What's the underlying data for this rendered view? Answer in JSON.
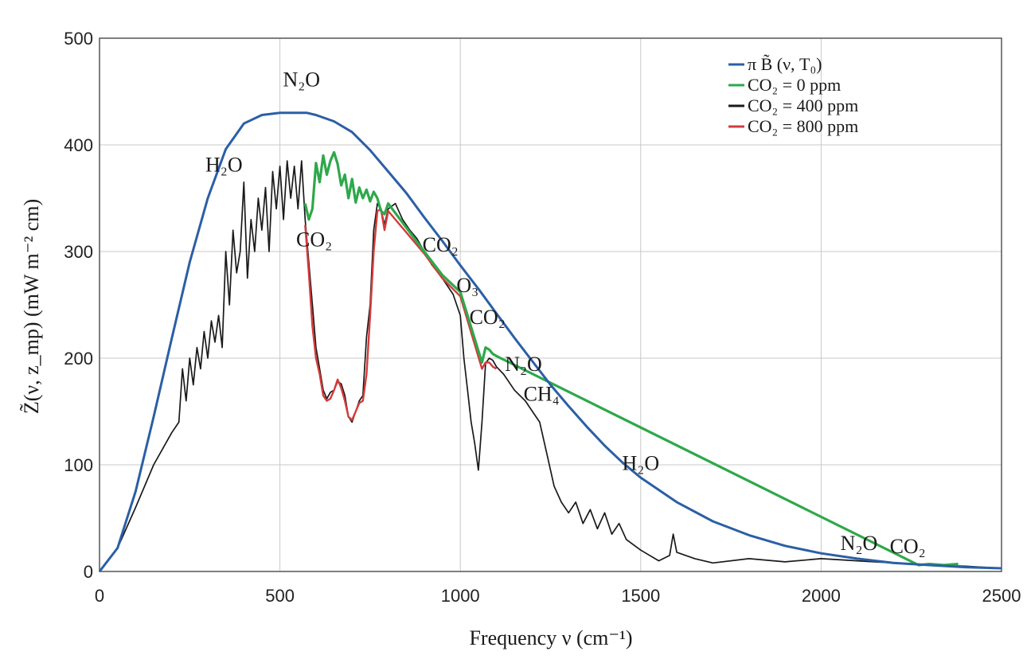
{
  "chart_data": {
    "type": "line",
    "title": "",
    "xlabel": "Frequency ν (cm⁻¹)",
    "ylabel": "Z̃(ν, z_mp) (mW m⁻² cm)",
    "xlim": [
      0,
      2500
    ],
    "ylim": [
      0,
      500
    ],
    "x_ticks": [
      0,
      500,
      1000,
      1500,
      2000,
      2500
    ],
    "y_ticks": [
      0,
      100,
      200,
      300,
      400,
      500
    ],
    "grid": true,
    "legend_position": "top-right",
    "series": [
      {
        "name": "π B̃ (ν, T₀)",
        "color": "#2b5fa6",
        "x": [
          0,
          50,
          100,
          150,
          200,
          250,
          300,
          350,
          400,
          450,
          500,
          550,
          575,
          600,
          650,
          700,
          750,
          800,
          850,
          900,
          950,
          1000,
          1050,
          1100,
          1150,
          1200,
          1250,
          1300,
          1350,
          1400,
          1450,
          1500,
          1600,
          1700,
          1800,
          1900,
          2000,
          2100,
          2200,
          2300,
          2400,
          2500
        ],
        "y": [
          0,
          22,
          75,
          145,
          218,
          290,
          350,
          396,
          420,
          428,
          430,
          430,
          430,
          428,
          422,
          412,
          395,
          375,
          355,
          332,
          310,
          287,
          265,
          242,
          219,
          197,
          175,
          155,
          136,
          118,
          102,
          88,
          65,
          47,
          34,
          24,
          17,
          12,
          8,
          6,
          4,
          3
        ]
      },
      {
        "name": "CO₂ = 0 ppm",
        "color": "#2ea84a",
        "x": [
          570,
          580,
          590,
          600,
          610,
          620,
          630,
          640,
          650,
          660,
          670,
          680,
          690,
          700,
          710,
          720,
          730,
          740,
          750,
          760,
          770,
          780,
          790,
          800,
          900,
          950,
          1000,
          1060,
          1070,
          1080,
          1090,
          1100,
          2270,
          2300,
          2340,
          2380
        ],
        "y": [
          345,
          330,
          340,
          383,
          365,
          390,
          372,
          385,
          393,
          382,
          362,
          372,
          350,
          368,
          346,
          360,
          350,
          358,
          347,
          356,
          350,
          338,
          335,
          345,
          300,
          278,
          262,
          196,
          210,
          208,
          204,
          202,
          6,
          7,
          6,
          7
        ]
      },
      {
        "name": "CO₂ = 400 ppm",
        "color": "#1a1a1a",
        "x": [
          0,
          50,
          100,
          150,
          200,
          220,
          230,
          240,
          250,
          260,
          270,
          280,
          290,
          300,
          310,
          320,
          330,
          340,
          350,
          360,
          370,
          380,
          390,
          400,
          410,
          420,
          430,
          440,
          450,
          460,
          470,
          480,
          490,
          500,
          510,
          520,
          530,
          540,
          550,
          560,
          570,
          580,
          590,
          600,
          610,
          620,
          630,
          640,
          650,
          660,
          670,
          680,
          690,
          700,
          710,
          720,
          730,
          740,
          750,
          760,
          770,
          780,
          790,
          800,
          820,
          840,
          860,
          880,
          900,
          920,
          950,
          980,
          1000,
          1010,
          1020,
          1030,
          1040,
          1050,
          1060,
          1070,
          1080,
          1090,
          1100,
          1120,
          1150,
          1180,
          1200,
          1220,
          1240,
          1260,
          1280,
          1300,
          1320,
          1340,
          1360,
          1380,
          1400,
          1420,
          1440,
          1460,
          1500,
          1550,
          1580,
          1590,
          1600,
          1650,
          1700,
          1800,
          1900,
          2000,
          2100,
          2200,
          2300,
          2400,
          2500
        ],
        "y": [
          0,
          22,
          60,
          100,
          130,
          140,
          190,
          160,
          200,
          175,
          210,
          190,
          225,
          200,
          235,
          215,
          240,
          210,
          300,
          250,
          320,
          280,
          300,
          365,
          275,
          330,
          300,
          350,
          320,
          360,
          300,
          375,
          340,
          380,
          330,
          385,
          350,
          380,
          340,
          385,
          330,
          290,
          250,
          210,
          190,
          170,
          162,
          168,
          170,
          178,
          176,
          165,
          145,
          140,
          150,
          160,
          165,
          220,
          250,
          320,
          345,
          340,
          325,
          340,
          345,
          330,
          320,
          312,
          300,
          288,
          275,
          260,
          240,
          200,
          170,
          140,
          120,
          95,
          140,
          195,
          200,
          198,
          192,
          185,
          170,
          160,
          150,
          140,
          110,
          80,
          65,
          55,
          65,
          45,
          58,
          40,
          55,
          35,
          45,
          30,
          20,
          10,
          15,
          35,
          18,
          12,
          8,
          12,
          9,
          12,
          10,
          8,
          6,
          5,
          3
        ]
      },
      {
        "name": "CO₂ = 800 ppm",
        "color": "#d43b3b",
        "x": [
          570,
          580,
          590,
          600,
          610,
          620,
          630,
          640,
          650,
          660,
          670,
          680,
          690,
          700,
          710,
          720,
          730,
          740,
          750,
          760,
          770,
          780,
          790,
          800,
          900,
          950,
          1000,
          1060,
          1070,
          1080,
          1090,
          1100
        ],
        "y": [
          325,
          280,
          230,
          200,
          185,
          165,
          160,
          162,
          170,
          180,
          172,
          160,
          145,
          142,
          150,
          158,
          160,
          185,
          240,
          300,
          338,
          340,
          320,
          338,
          298,
          275,
          258,
          190,
          196,
          196,
          192,
          190
        ]
      }
    ],
    "annotations": [
      {
        "text": "N₂O",
        "x": 560,
        "y": 455
      },
      {
        "text": "H₂O",
        "x": 345,
        "y": 375
      },
      {
        "text": "CO₂",
        "x": 595,
        "y": 305
      },
      {
        "text": "CO₂",
        "x": 945,
        "y": 300
      },
      {
        "text": "O₃",
        "x": 1020,
        "y": 262
      },
      {
        "text": "CO₂",
        "x": 1075,
        "y": 232
      },
      {
        "text": "N₂O",
        "x": 1175,
        "y": 188
      },
      {
        "text": "CH₄",
        "x": 1225,
        "y": 160
      },
      {
        "text": "H₂O",
        "x": 1500,
        "y": 95
      },
      {
        "text": "N₂O",
        "x": 2105,
        "y": 20
      },
      {
        "text": "CO₂",
        "x": 2240,
        "y": 17
      }
    ]
  }
}
